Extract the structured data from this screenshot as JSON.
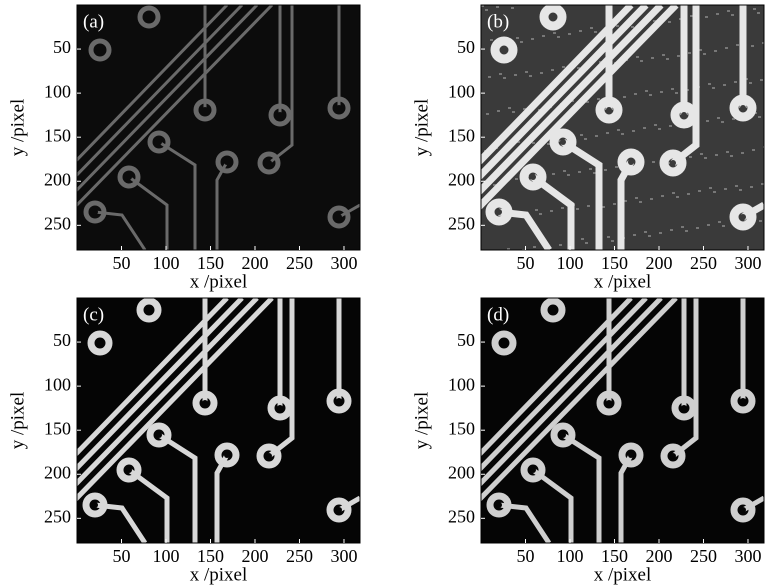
{
  "chart_data": [
    {
      "type": "image",
      "label": "(a)",
      "xlabel": "x /pixel",
      "ylabel": "y /pixel",
      "xlim": [
        0,
        318
      ],
      "ylim": [
        278,
        0
      ],
      "xticks": [
        50,
        100,
        150,
        200,
        250,
        300
      ],
      "yticks": [
        50,
        100,
        150,
        200,
        250
      ]
    },
    {
      "type": "image",
      "label": "(b)",
      "xlabel": "x /pixel",
      "ylabel": "y /pixel",
      "xlim": [
        0,
        318
      ],
      "ylim": [
        278,
        0
      ],
      "xticks": [
        50,
        100,
        150,
        200,
        250,
        300
      ],
      "yticks": [
        50,
        100,
        150,
        200,
        250
      ]
    },
    {
      "type": "image",
      "label": "(c)",
      "xlabel": "x /pixel",
      "ylabel": "y /pixel",
      "xlim": [
        0,
        318
      ],
      "ylim": [
        278,
        0
      ],
      "xticks": [
        50,
        100,
        150,
        200,
        250,
        300
      ],
      "yticks": [
        50,
        100,
        150,
        200,
        250
      ]
    },
    {
      "type": "image",
      "label": "(d)",
      "xlabel": "x /pixel",
      "ylabel": "y /pixel",
      "xlim": [
        0,
        318
      ],
      "ylim": [
        278,
        0
      ],
      "xticks": [
        50,
        100,
        150,
        200,
        250,
        300
      ],
      "yticks": [
        50,
        100,
        150,
        200,
        250
      ]
    }
  ]
}
